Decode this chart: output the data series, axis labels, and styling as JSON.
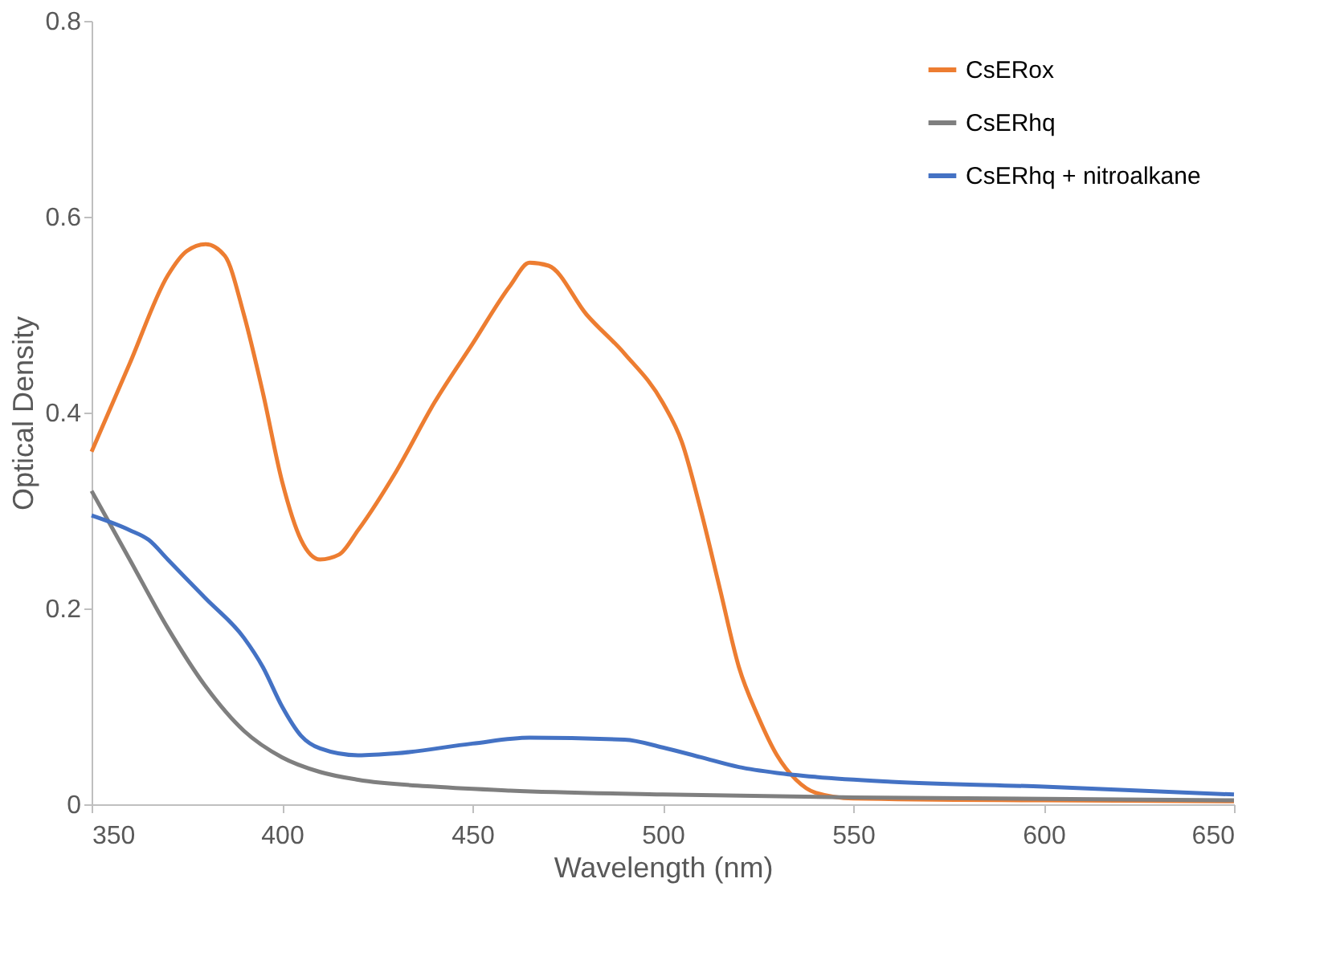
{
  "chart_data": {
    "type": "line",
    "xlabel": "Wavelength (nm)",
    "ylabel": "Optical Density",
    "xlim": [
      350,
      650
    ],
    "xticks": [
      350,
      400,
      450,
      500,
      550,
      600,
      650
    ],
    "ylim": [
      0,
      0.8
    ],
    "yticks": [
      0,
      0.2,
      0.4,
      0.6,
      0.8
    ],
    "grid": false,
    "legend": "top right",
    "marker": "none",
    "line_style": "solid",
    "series": [
      {
        "name": "CsERox",
        "color": "#ed7d31",
        "x": [
          350,
          360,
          370,
          375,
          380,
          385,
          390,
          395,
          400,
          405,
          410,
          415,
          420,
          430,
          440,
          450,
          460,
          465,
          470,
          480,
          490,
          500,
          505,
          510,
          515,
          520,
          525,
          530,
          535,
          540,
          550,
          600,
          650
        ],
        "values": [
          0.36,
          0.45,
          0.54,
          0.565,
          0.572,
          0.56,
          0.5,
          0.42,
          0.33,
          0.27,
          0.25,
          0.255,
          0.28,
          0.34,
          0.41,
          0.47,
          0.53,
          0.553,
          0.55,
          0.5,
          0.46,
          0.41,
          0.37,
          0.3,
          0.22,
          0.14,
          0.09,
          0.05,
          0.025,
          0.012,
          0.006,
          0.004,
          0.003
        ]
      },
      {
        "name": "CsERhq",
        "color": "#7f7f7f",
        "x": [
          350,
          360,
          370,
          380,
          390,
          400,
          410,
          420,
          440,
          460,
          500,
          550,
          650
        ],
        "values": [
          0.32,
          0.25,
          0.18,
          0.12,
          0.075,
          0.048,
          0.033,
          0.025,
          0.018,
          0.014,
          0.01,
          0.007,
          0.004
        ]
      },
      {
        "name": "CsERhq + nitroalkane",
        "color": "#4472c4",
        "x": [
          350,
          360,
          365,
          370,
          380,
          390,
          395,
          400,
          405,
          410,
          420,
          430,
          450,
          465,
          490,
          500,
          510,
          520,
          530,
          540,
          560,
          600,
          650
        ],
        "values": [
          0.295,
          0.28,
          0.27,
          0.25,
          0.21,
          0.17,
          0.14,
          0.1,
          0.07,
          0.057,
          0.05,
          0.052,
          0.062,
          0.068,
          0.066,
          0.058,
          0.048,
          0.038,
          0.032,
          0.028,
          0.023,
          0.018,
          0.01
        ]
      }
    ]
  }
}
